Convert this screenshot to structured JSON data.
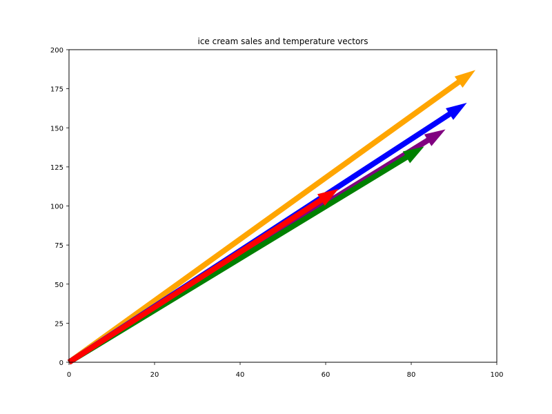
{
  "chart_data": {
    "type": "quiver",
    "title": "ice cream sales and temperature vectors",
    "xlabel": "",
    "ylabel": "",
    "xlim": [
      0,
      100
    ],
    "ylim": [
      0,
      200
    ],
    "xticks": [
      "0",
      "20",
      "40",
      "60",
      "80",
      "100"
    ],
    "yticks": [
      "0",
      "25",
      "50",
      "75",
      "100",
      "125",
      "150",
      "175",
      "200"
    ],
    "grid": false,
    "series": [
      {
        "x0": 0,
        "y0": 0,
        "x1": 95,
        "y1": 187,
        "color": "#ffa500"
      },
      {
        "x0": 0,
        "y0": 0,
        "x1": 93,
        "y1": 166,
        "color": "#0000ff"
      },
      {
        "x0": 0,
        "y0": 0,
        "x1": 88,
        "y1": 149,
        "color": "#800080"
      },
      {
        "x0": 0,
        "y0": 0,
        "x1": 83,
        "y1": 138,
        "color": "#008000"
      },
      {
        "x0": 0,
        "y0": 0,
        "x1": 63,
        "y1": 111,
        "color": "#ff0000"
      }
    ]
  }
}
